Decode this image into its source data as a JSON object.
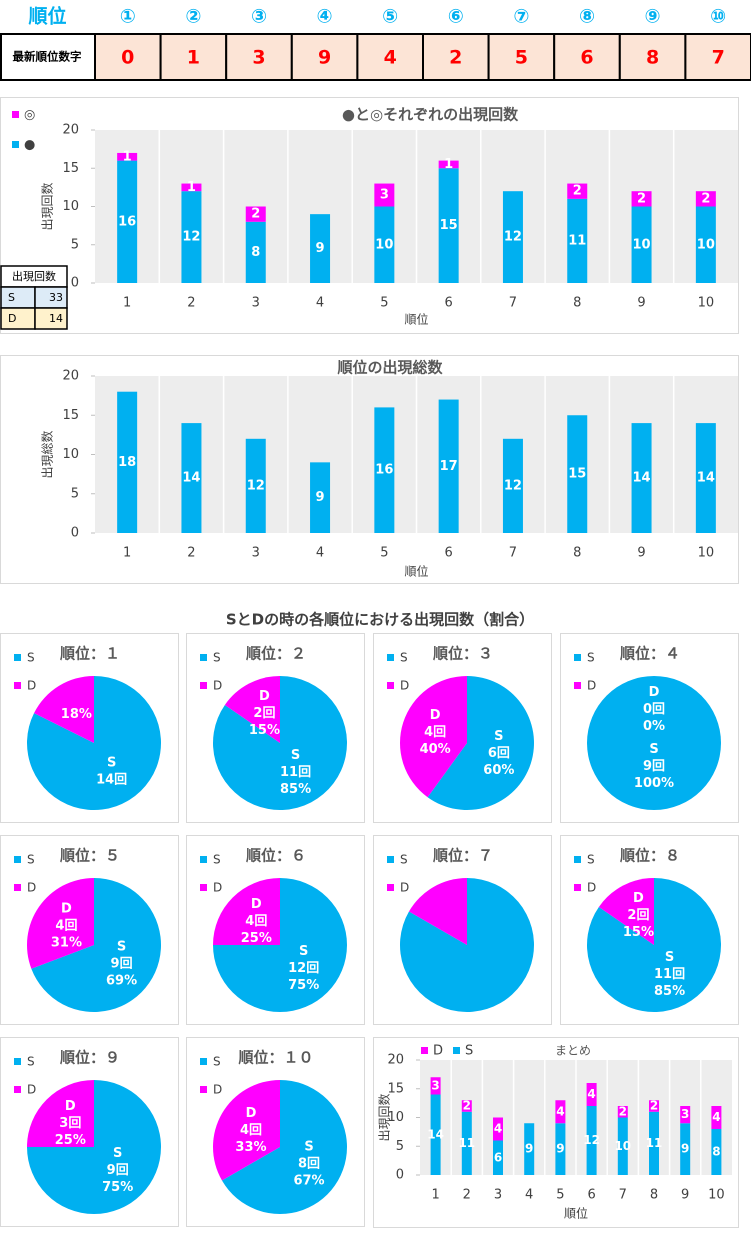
{
  "table": {
    "header": [
      "順位",
      "①",
      "②",
      "③",
      "④",
      "⑤",
      "⑥",
      "⑦",
      "⑧",
      "⑨",
      "⑩"
    ],
    "row_label": "最新順位数字",
    "row": [
      0,
      1,
      3,
      9,
      4,
      2,
      5,
      6,
      8,
      7
    ]
  },
  "count_table": {
    "title": "出現回数",
    "rows": [
      [
        "S",
        33
      ],
      [
        "D",
        14
      ]
    ]
  },
  "pies_title": "SとDの時の各順位における出現回数（割合）",
  "chart_data": [
    {
      "type": "bar",
      "stacked": true,
      "title": "●と◎それぞれの出現回数",
      "x_label": "順位",
      "y_label": "出現回数",
      "categories": [
        "1",
        "2",
        "3",
        "4",
        "5",
        "6",
        "7",
        "8",
        "9",
        "10"
      ],
      "series": [
        {
          "name": "●",
          "color": "#00b0f0",
          "values": [
            16,
            12,
            8,
            9,
            10,
            15,
            12,
            11,
            10,
            10
          ]
        },
        {
          "name": "◎",
          "color": "#ff00ff",
          "values": [
            1,
            1,
            2,
            0,
            3,
            1,
            0,
            2,
            2,
            2
          ]
        }
      ],
      "ylim": [
        0,
        20
      ],
      "yticks": [
        0,
        5,
        10,
        15,
        20
      ],
      "legend": "top-left"
    },
    {
      "type": "bar",
      "title": "順位の出現総数",
      "x_label": "順位",
      "y_label": "出現総数",
      "categories": [
        "1",
        "2",
        "3",
        "4",
        "5",
        "6",
        "7",
        "8",
        "9",
        "10"
      ],
      "values": [
        18,
        14,
        12,
        9,
        16,
        17,
        12,
        15,
        14,
        14
      ],
      "color": "#00b0f0",
      "ylim": [
        0,
        20
      ],
      "yticks": [
        0,
        5,
        10,
        15,
        20
      ]
    },
    {
      "type": "pie",
      "title": "順位：１",
      "categories": [
        "S",
        "D"
      ],
      "colors": [
        "#00b0f0",
        "#ff00ff"
      ],
      "values": [
        14,
        3
      ],
      "value_labels": [
        "14回",
        null
      ],
      "percent_labels": [
        null,
        "18%"
      ]
    },
    {
      "type": "pie",
      "title": "順位：２",
      "categories": [
        "S",
        "D"
      ],
      "colors": [
        "#00b0f0",
        "#ff00ff"
      ],
      "values": [
        11,
        2
      ],
      "value_labels": [
        "11回",
        "2回"
      ],
      "percent_labels": [
        "85%",
        "15%"
      ]
    },
    {
      "type": "pie",
      "title": "順位：３",
      "categories": [
        "S",
        "D"
      ],
      "colors": [
        "#00b0f0",
        "#ff00ff"
      ],
      "values": [
        6,
        4
      ],
      "value_labels": [
        "6回",
        "4回"
      ],
      "percent_labels": [
        "60%",
        "40%"
      ]
    },
    {
      "type": "pie",
      "title": "順位：４",
      "categories": [
        "S",
        "D"
      ],
      "colors": [
        "#00b0f0",
        "#ff00ff"
      ],
      "values": [
        9,
        0
      ],
      "value_labels": [
        "9回",
        "0回"
      ],
      "percent_labels": [
        "100%",
        "0%"
      ]
    },
    {
      "type": "pie",
      "title": "順位：５",
      "categories": [
        "S",
        "D"
      ],
      "colors": [
        "#00b0f0",
        "#ff00ff"
      ],
      "values": [
        9,
        4
      ],
      "value_labels": [
        "9回",
        "4回"
      ],
      "percent_labels": [
        "69%",
        "31%"
      ]
    },
    {
      "type": "pie",
      "title": "順位：６",
      "categories": [
        "S",
        "D"
      ],
      "colors": [
        "#00b0f0",
        "#ff00ff"
      ],
      "values": [
        12,
        4
      ],
      "value_labels": [
        "12回",
        "4回"
      ],
      "percent_labels": [
        "75%",
        "25%"
      ]
    },
    {
      "type": "pie",
      "title": "順位：７",
      "categories": [
        "S",
        "D"
      ],
      "colors": [
        "#00b0f0",
        "#ff00ff"
      ],
      "values": [
        10,
        2
      ]
    },
    {
      "type": "pie",
      "title": "順位：８",
      "categories": [
        "S",
        "D"
      ],
      "colors": [
        "#00b0f0",
        "#ff00ff"
      ],
      "values": [
        11,
        2
      ],
      "value_labels": [
        "11回",
        "2回"
      ],
      "percent_labels": [
        "85%",
        "15%"
      ]
    },
    {
      "type": "pie",
      "title": "順位：９",
      "categories": [
        "S",
        "D"
      ],
      "colors": [
        "#00b0f0",
        "#ff00ff"
      ],
      "values": [
        9,
        3
      ],
      "value_labels": [
        "9回",
        "3回"
      ],
      "percent_labels": [
        "75%",
        "25%"
      ]
    },
    {
      "type": "pie",
      "title": "順位：１０",
      "categories": [
        "S",
        "D"
      ],
      "colors": [
        "#00b0f0",
        "#ff00ff"
      ],
      "values": [
        8,
        4
      ],
      "value_labels": [
        "8回",
        "4回"
      ],
      "percent_labels": [
        "67%",
        "33%"
      ]
    },
    {
      "type": "bar",
      "stacked": true,
      "title": "まとめ",
      "x_label": "順位",
      "y_label": "出現回数",
      "categories": [
        "1",
        "2",
        "3",
        "4",
        "5",
        "6",
        "7",
        "8",
        "9",
        "10"
      ],
      "series": [
        {
          "name": "S",
          "color": "#00b0f0",
          "values": [
            14,
            11,
            6,
            9,
            9,
            12,
            10,
            11,
            9,
            8
          ]
        },
        {
          "name": "D",
          "color": "#ff00ff",
          "values": [
            3,
            2,
            4,
            0,
            4,
            4,
            2,
            2,
            3,
            4
          ]
        }
      ],
      "ylim": [
        0,
        20
      ],
      "yticks": [
        0,
        5,
        10,
        15,
        20
      ],
      "legend": "top-left"
    }
  ]
}
